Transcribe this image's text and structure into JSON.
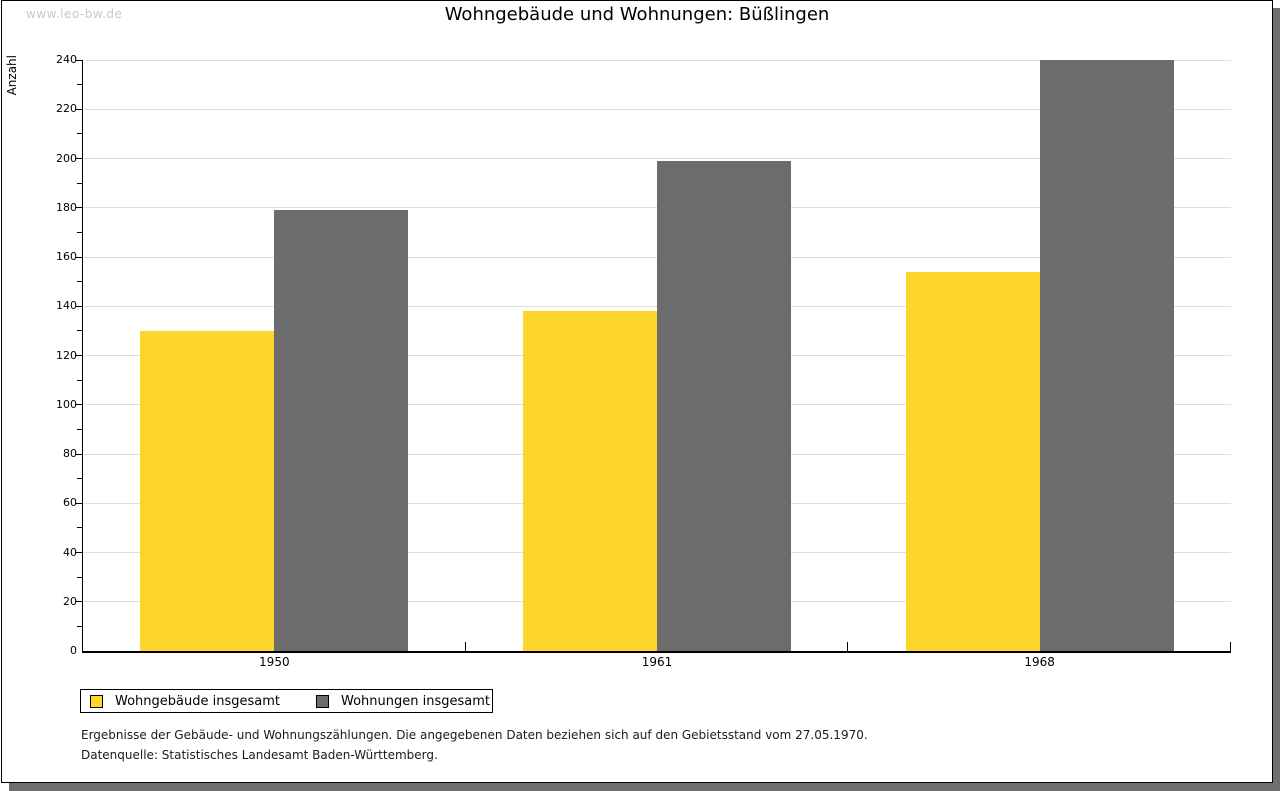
{
  "watermark": "www.leo-bw.de",
  "title": "Wohngebäude und Wohnungen: Büßlingen",
  "chart_data": {
    "type": "bar",
    "title": "Wohngebäude und Wohnungen: Büßlingen",
    "xlabel": "",
    "ylabel": "Anzahl",
    "categories": [
      "1950",
      "1961",
      "1968"
    ],
    "series": [
      {
        "name": "Wohngebäude insgesamt",
        "color": "#FCD52D",
        "values": [
          130,
          138,
          154
        ]
      },
      {
        "name": "Wohnungen insgesamt",
        "color": "#6C6C6C",
        "values": [
          179,
          199,
          240
        ]
      }
    ],
    "ylim": [
      0,
      240
    ],
    "y_major_step": 20,
    "y_minor_step": 10,
    "grid": true,
    "gridline_color": "#DEDEDE",
    "legend_position": "bottom-left"
  },
  "footnotes": {
    "line1": "Ergebnisse der Gebäude- und Wohnungszählungen. Die angegebenen Daten beziehen sich auf den Gebietsstand vom 27.05.1970.",
    "line2": "Datenquelle: Statistisches Landesamt Baden-Württemberg."
  }
}
